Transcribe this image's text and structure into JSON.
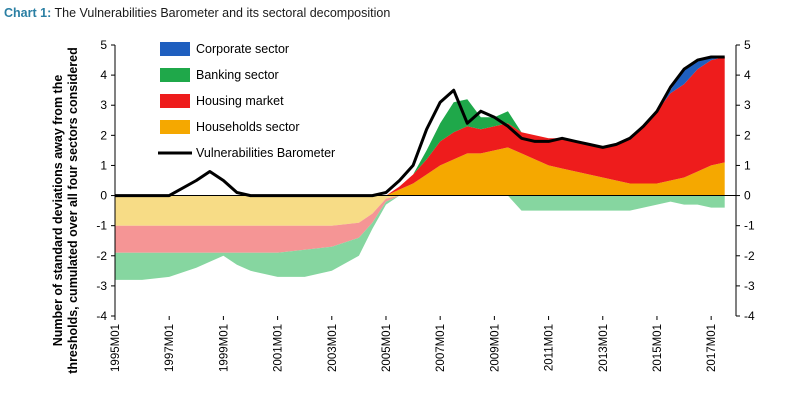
{
  "title": {
    "prefix": "Chart 1:",
    "text": "The Vulnerabilities Barometer and its sectoral decomposition"
  },
  "chart_data": {
    "type": "area",
    "ylabel_lines": [
      "Number of standard deviations away from the",
      "thresholds, cumulated over all four sectors considered"
    ],
    "ylim": [
      -4,
      5
    ],
    "yticks": [
      "5",
      "4",
      "3",
      "2",
      "1",
      "0",
      "-1",
      "-2",
      "-3",
      "-4"
    ],
    "x_tick_labels": [
      "1995M01",
      "1997M01",
      "1999M01",
      "2001M01",
      "2003M01",
      "2005M01",
      "2007M01",
      "2009M01",
      "2011M01",
      "2013M01",
      "2015M01",
      "2017M01"
    ],
    "x": [
      "1995M01",
      "1996M01",
      "1997M01",
      "1998M01",
      "1998M07",
      "1999M01",
      "1999M07",
      "2000M01",
      "2001M01",
      "2002M01",
      "2003M01",
      "2004M01",
      "2004M07",
      "2005M01",
      "2005M07",
      "2006M01",
      "2006M07",
      "2007M01",
      "2007M07",
      "2008M01",
      "2008M07",
      "2009M01",
      "2009M07",
      "2010M01",
      "2010M07",
      "2011M01",
      "2011M07",
      "2012M01",
      "2012M07",
      "2013M01",
      "2013M07",
      "2014M01",
      "2014M07",
      "2015M01",
      "2015M07",
      "2016M01",
      "2016M07",
      "2017M01",
      "2017M07"
    ],
    "series": [
      {
        "name": "Corporate sector",
        "color": "#1f5fbf",
        "values": [
          0,
          0,
          0,
          0,
          0,
          0,
          0,
          0,
          0,
          0,
          0,
          0,
          0,
          0,
          0,
          0,
          0,
          0,
          0,
          0,
          0,
          0,
          0,
          0,
          0,
          0,
          0,
          0,
          0,
          0,
          0,
          0,
          0,
          0,
          0.1,
          0.5,
          0.3,
          0.1,
          0
        ]
      },
      {
        "name": "Banking sector",
        "color": "#1fa84a",
        "values": [
          -0.9,
          -0.9,
          -0.8,
          -0.5,
          -0.3,
          -0.1,
          -0.4,
          -0.6,
          -0.8,
          -0.9,
          -0.8,
          -0.6,
          -0.2,
          -0.1,
          0,
          0,
          0.3,
          0.6,
          1,
          0.9,
          0.4,
          0.3,
          0.4,
          -0.5,
          -0.5,
          -0.5,
          -0.5,
          -0.5,
          -0.5,
          -0.5,
          -0.5,
          -0.5,
          -0.4,
          -0.3,
          -0.2,
          -0.3,
          -0.3,
          -0.4,
          -0.4
        ]
      },
      {
        "name": "Housing market",
        "color": "#ee1c1c",
        "values": [
          -0.9,
          -0.9,
          -0.9,
          -0.9,
          -0.9,
          -0.9,
          -0.9,
          -0.9,
          -0.9,
          -0.8,
          -0.7,
          -0.5,
          -0.3,
          -0.1,
          0.1,
          0.3,
          0.5,
          0.8,
          0.9,
          0.9,
          0.8,
          0.8,
          0.8,
          0.7,
          0.8,
          0.9,
          1,
          1,
          1,
          1,
          1.2,
          1.5,
          1.9,
          2.4,
          2.9,
          3.1,
          3.4,
          3.5,
          3.5
        ]
      },
      {
        "name": "Households sector",
        "color": "#f5a800",
        "values": [
          -1,
          -1,
          -1,
          -1,
          -1,
          -1,
          -1,
          -1,
          -1,
          -1,
          -1,
          -0.9,
          -0.6,
          -0.1,
          0.2,
          0.4,
          0.7,
          1,
          1.2,
          1.4,
          1.4,
          1.5,
          1.6,
          1.4,
          1.2,
          1,
          0.9,
          0.8,
          0.7,
          0.6,
          0.5,
          0.4,
          0.4,
          0.4,
          0.5,
          0.6,
          0.8,
          1,
          1.1
        ]
      },
      {
        "name": "Vulnerabilities Barometer",
        "color": "#000000",
        "values": [
          0,
          0,
          0,
          0.5,
          0.8,
          0.5,
          0.1,
          0,
          0,
          0,
          0,
          0,
          0,
          0.1,
          0.5,
          1,
          2.2,
          3.1,
          3.5,
          2.4,
          2.8,
          2.6,
          2.3,
          1.9,
          1.8,
          1.8,
          1.9,
          1.8,
          1.7,
          1.6,
          1.7,
          1.9,
          2.3,
          2.8,
          3.6,
          4.2,
          4.5,
          4.6,
          4.6
        ]
      }
    ],
    "legend": "top-left inside plot",
    "grid": false
  }
}
